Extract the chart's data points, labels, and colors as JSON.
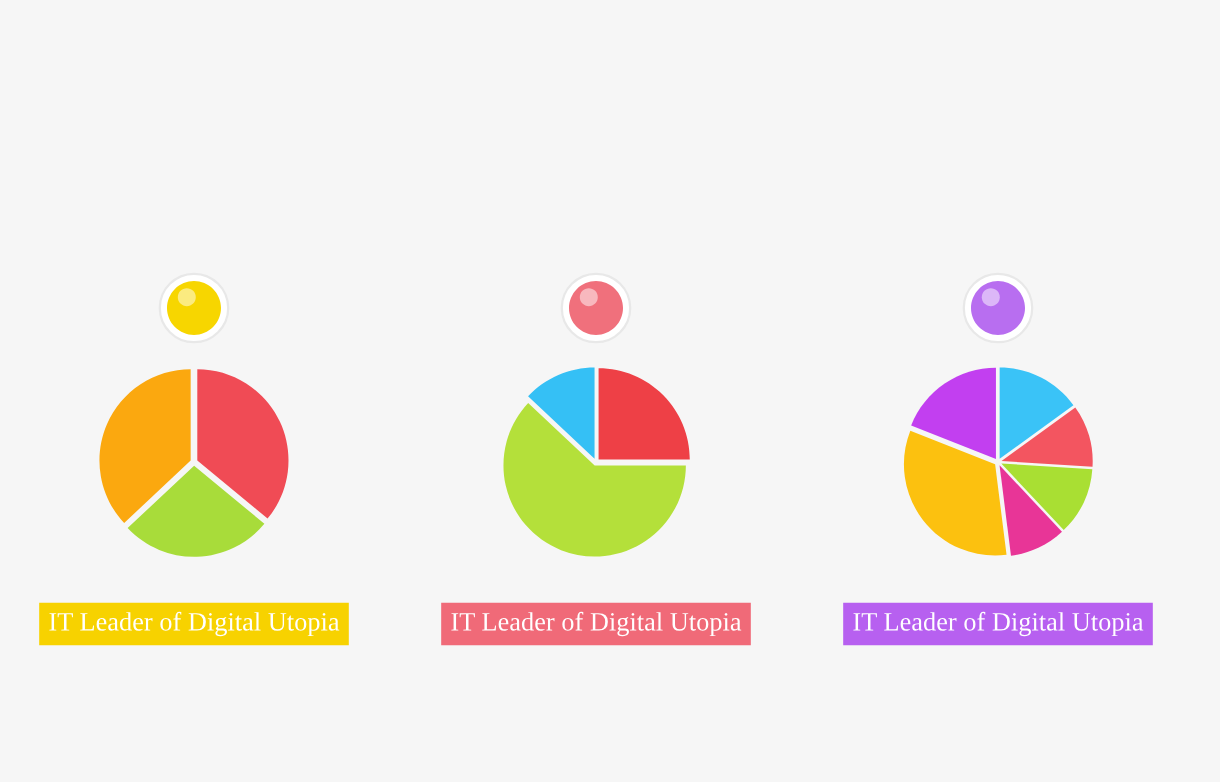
{
  "chart_data": [
    {
      "type": "pie",
      "title": "IT Leader of Digital Utopia",
      "categories": [
        null,
        null,
        null
      ],
      "values": [
        36,
        27,
        37
      ],
      "colors": [
        "#f04b55",
        "#a8dc3a",
        "#fba80f"
      ],
      "legend": false
    },
    {
      "type": "pie",
      "title": "IT Leader of Digital Utopia",
      "categories": [
        null,
        null,
        null
      ],
      "values": [
        25,
        62,
        13
      ],
      "colors": [
        "#ee4046",
        "#b4e03a",
        "#35c0f5"
      ],
      "legend": false
    },
    {
      "type": "pie",
      "title": "IT Leader of Digital Utopia",
      "categories": [
        null,
        null,
        null,
        null,
        null,
        null
      ],
      "values": [
        15,
        11,
        12,
        10,
        33,
        19
      ],
      "colors": [
        "#3ac3f7",
        "#f35560",
        "#a9df33",
        "#e83597",
        "#fcc10f",
        "#c23ff0"
      ],
      "legend": false
    }
  ]
}
